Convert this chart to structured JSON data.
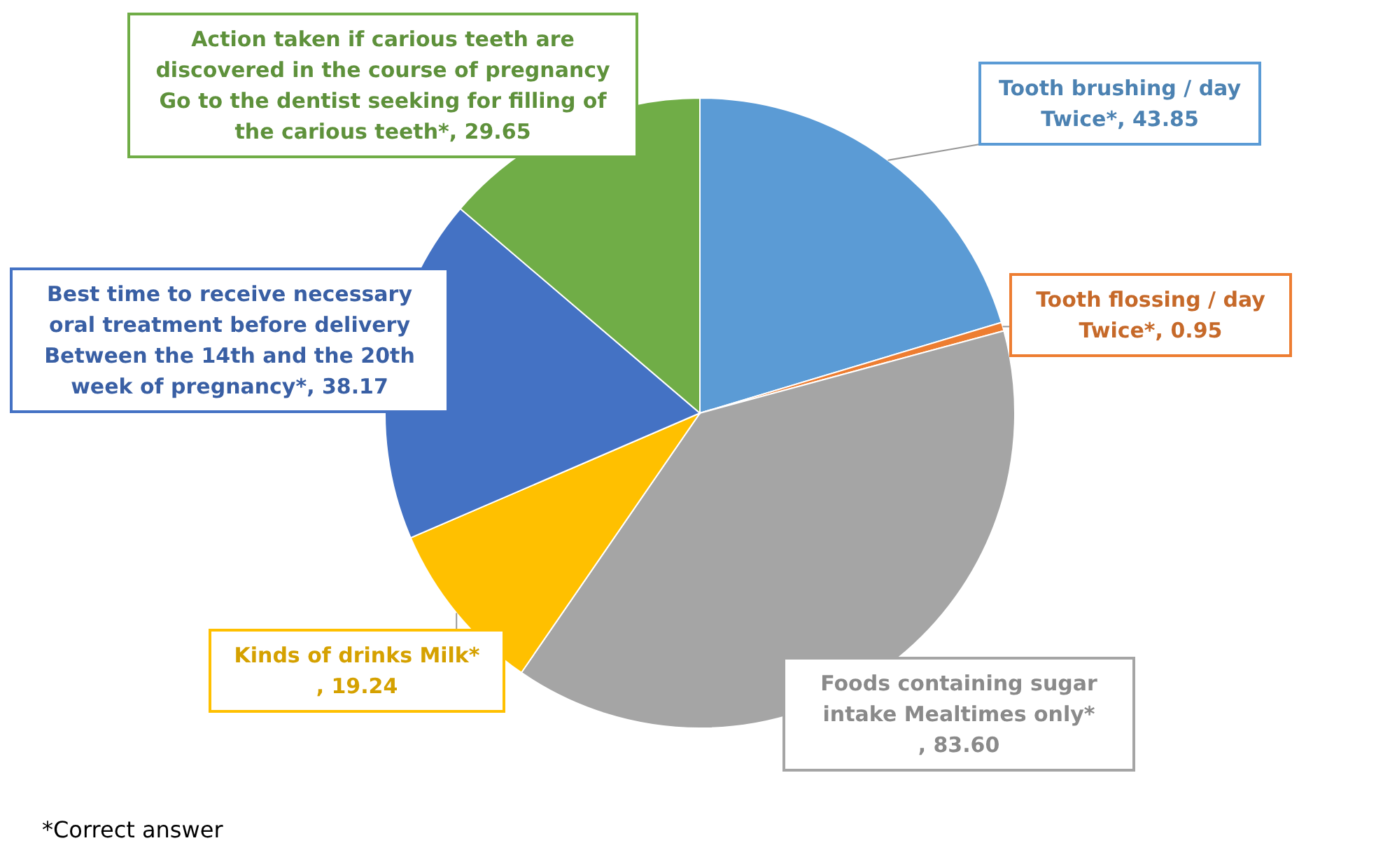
{
  "chart_data": {
    "type": "pie",
    "categories": [
      "Tooth brushing / day Twice*",
      "Tooth flossing / day Twice*",
      "Foods containing sugar intake Mealtimes only*",
      "Kinds of drinks Milk*",
      "Best time to receive necessary oral treatment before delivery Between the 14th and the 20th week of pregnancy*",
      "Action taken if carious teeth are discovered in the course of pregnancy Go to the dentist seeking for filling of the carious teeth*"
    ],
    "values": [
      43.85,
      0.95,
      83.6,
      19.24,
      38.17,
      29.65
    ],
    "value_labels": [
      ", 43.85",
      ", 0.95",
      ", 83.60",
      ", 19.24",
      ", 38.17",
      ", 29.65"
    ],
    "colors": [
      "#5b9bd5",
      "#ed7d31",
      "#a5a5a5",
      "#ffc000",
      "#4472c4",
      "#70ad47"
    ],
    "annotations": [
      "*Correct answer"
    ]
  }
}
